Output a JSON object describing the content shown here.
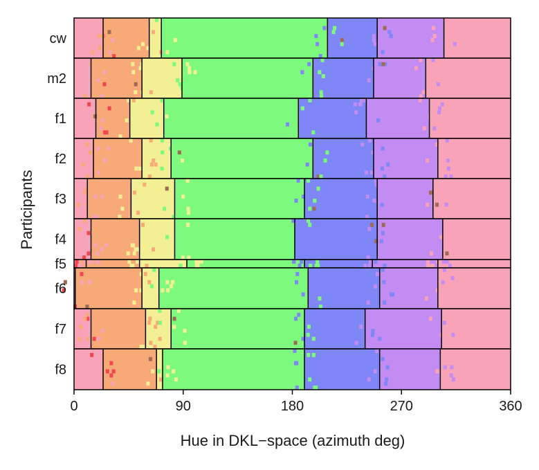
{
  "chart_data": {
    "type": "heatmap",
    "xlabel": "Hue in DKL−space (azimuth deg)",
    "ylabel": "Participants",
    "xlim": [
      0,
      360
    ],
    "xticks": [
      0,
      90,
      180,
      270,
      360
    ],
    "x_tick_labels": [
      "0",
      "90",
      "180",
      "270",
      "360"
    ],
    "grid": false,
    "category_colors": {
      "pink": "#f9a3b8",
      "orange": "#f8a978",
      "yellow": "#f3ef94",
      "green": "#7dfa7d",
      "blue": "#7f86f6",
      "purple": "#c38cf2",
      "red": "#f2454d",
      "brown": "#9e6a55"
    },
    "participants": [
      {
        "name": "cw",
        "boundaries": [
          {
            "hue": 24,
            "from": "pink",
            "to": "orange"
          },
          {
            "hue": 62,
            "from": "orange",
            "to": "yellow"
          },
          {
            "hue": 72,
            "from": "yellow",
            "to": "green"
          },
          {
            "hue": 209,
            "from": "green",
            "to": "blue"
          },
          {
            "hue": 250,
            "from": "blue",
            "to": "purple"
          },
          {
            "hue": 305,
            "from": "purple",
            "to": "pink"
          }
        ]
      },
      {
        "name": "m2",
        "boundaries": [
          {
            "hue": 14,
            "from": "pink",
            "to": "orange"
          },
          {
            "hue": 56,
            "from": "orange",
            "to": "yellow"
          },
          {
            "hue": 89,
            "from": "yellow",
            "to": "green"
          },
          {
            "hue": 197,
            "from": "green",
            "to": "blue"
          },
          {
            "hue": 247,
            "from": "blue",
            "to": "purple"
          },
          {
            "hue": 290,
            "from": "purple",
            "to": "pink"
          }
        ]
      },
      {
        "name": "f1",
        "boundaries": [
          {
            "hue": 18,
            "from": "pink",
            "to": "orange"
          },
          {
            "hue": 46,
            "from": "orange",
            "to": "yellow"
          },
          {
            "hue": 74,
            "from": "yellow",
            "to": "green"
          },
          {
            "hue": 185,
            "from": "green",
            "to": "blue"
          },
          {
            "hue": 241,
            "from": "blue",
            "to": "purple"
          },
          {
            "hue": 293,
            "from": "purple",
            "to": "pink"
          }
        ]
      },
      {
        "name": "f2",
        "boundaries": [
          {
            "hue": 16,
            "from": "pink",
            "to": "orange"
          },
          {
            "hue": 56,
            "from": "orange",
            "to": "yellow"
          },
          {
            "hue": 80,
            "from": "yellow",
            "to": "green"
          },
          {
            "hue": 197,
            "from": "green",
            "to": "blue"
          },
          {
            "hue": 247,
            "from": "blue",
            "to": "purple"
          },
          {
            "hue": 300,
            "from": "purple",
            "to": "pink"
          }
        ]
      },
      {
        "name": "f3",
        "boundaries": [
          {
            "hue": 11,
            "from": "pink",
            "to": "orange"
          },
          {
            "hue": 47,
            "from": "orange",
            "to": "yellow"
          },
          {
            "hue": 83,
            "from": "yellow",
            "to": "green"
          },
          {
            "hue": 190,
            "from": "green",
            "to": "blue"
          },
          {
            "hue": 250,
            "from": "blue",
            "to": "purple"
          },
          {
            "hue": 296,
            "from": "purple",
            "to": "pink"
          }
        ]
      },
      {
        "name": "f4",
        "boundaries": [
          {
            "hue": 14,
            "from": "pink",
            "to": "orange"
          },
          {
            "hue": 54,
            "from": "orange",
            "to": "yellow"
          },
          {
            "hue": 83,
            "from": "yellow",
            "to": "green"
          },
          {
            "hue": 182,
            "from": "green",
            "to": "blue"
          },
          {
            "hue": 250,
            "from": "blue",
            "to": "purple"
          },
          {
            "hue": 304,
            "from": "purple",
            "to": "pink"
          }
        ]
      },
      {
        "name": "f5",
        "boundaries": [
          {
            "hue": 10,
            "from": "pink",
            "to": "orange"
          },
          {
            "hue": 54,
            "from": "orange",
            "to": "yellow"
          },
          {
            "hue": 93,
            "from": "yellow",
            "to": "green"
          },
          {
            "hue": 190,
            "from": "green",
            "to": "blue"
          },
          {
            "hue": 246,
            "from": "blue",
            "to": "purple"
          },
          {
            "hue": 300,
            "from": "purple",
            "to": "pink"
          }
        ]
      },
      {
        "name": "f6",
        "boundaries": [
          {
            "hue": 1,
            "from": "pink",
            "to": "orange"
          },
          {
            "hue": 56,
            "from": "orange",
            "to": "yellow"
          },
          {
            "hue": 70,
            "from": "yellow",
            "to": "green"
          },
          {
            "hue": 193,
            "from": "green",
            "to": "blue"
          },
          {
            "hue": 252,
            "from": "blue",
            "to": "purple"
          },
          {
            "hue": 300,
            "from": "purple",
            "to": "pink"
          }
        ]
      },
      {
        "name": "f7",
        "boundaries": [
          {
            "hue": 14,
            "from": "pink",
            "to": "orange"
          },
          {
            "hue": 59,
            "from": "orange",
            "to": "yellow"
          },
          {
            "hue": 80,
            "from": "yellow",
            "to": "green"
          },
          {
            "hue": 190,
            "from": "green",
            "to": "blue"
          },
          {
            "hue": 240,
            "from": "blue",
            "to": "purple"
          },
          {
            "hue": 303,
            "from": "purple",
            "to": "pink"
          }
        ]
      },
      {
        "name": "f8",
        "boundaries": [
          {
            "hue": 24,
            "from": "pink",
            "to": "orange"
          },
          {
            "hue": 68,
            "from": "orange",
            "to": "yellow"
          },
          {
            "hue": 73,
            "from": "yellow",
            "to": "green"
          },
          {
            "hue": 190,
            "from": "green",
            "to": "blue"
          },
          {
            "hue": 252,
            "from": "blue",
            "to": "purple"
          },
          {
            "hue": 302,
            "from": "purple",
            "to": "pink"
          }
        ]
      }
    ]
  }
}
